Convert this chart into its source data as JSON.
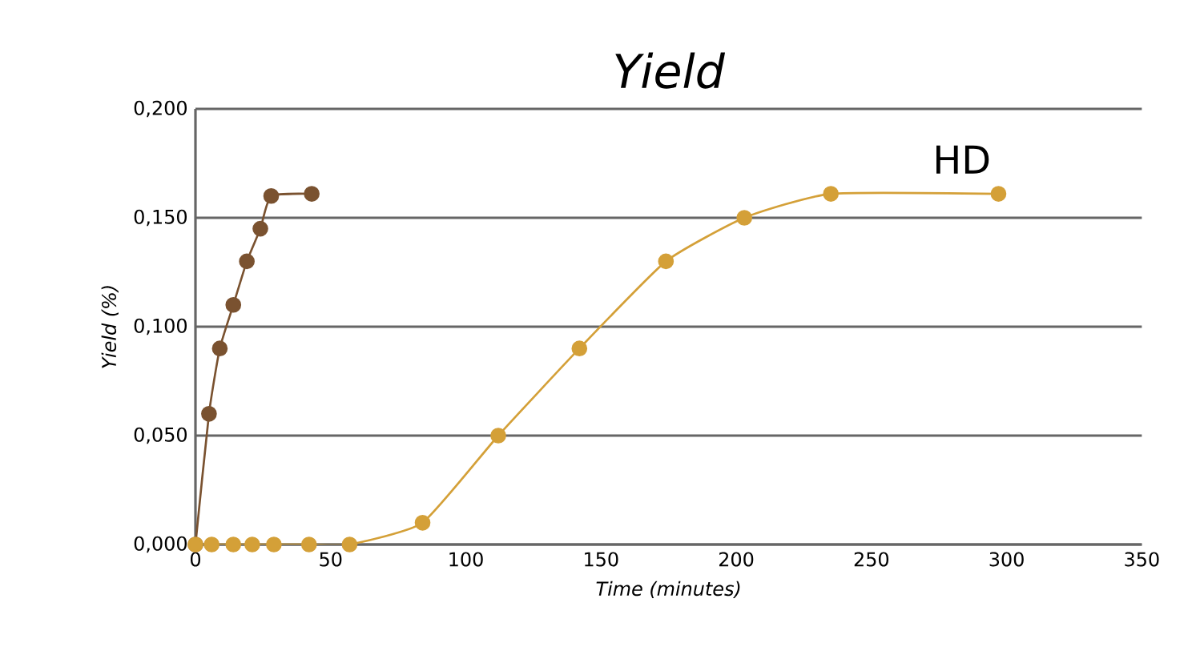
{
  "chart_data": {
    "type": "line",
    "title": "Yield",
    "xlabel": "Time (minutes)",
    "ylabel": "Yield (%)",
    "xlim": [
      0,
      350
    ],
    "xticks": [
      0,
      50,
      100,
      150,
      200,
      250,
      300,
      350
    ],
    "ylim": [
      0,
      0.2
    ],
    "yticks": [
      {
        "value": 0,
        "label": "0,000"
      },
      {
        "value": 0.05,
        "label": "0,050"
      },
      {
        "value": 0.1,
        "label": "0,100"
      },
      {
        "value": 0.15,
        "label": "0,150"
      },
      {
        "value": 0.2,
        "label": "0,200"
      }
    ],
    "grid": "y",
    "marker": "circle",
    "legend": false,
    "series": [
      {
        "color": "#7a5230",
        "x": [
          0,
          5,
          9,
          14,
          19,
          24,
          28,
          43
        ],
        "values": [
          0,
          0.06,
          0.09,
          0.11,
          0.13,
          0.145,
          0.16,
          0.161
        ]
      },
      {
        "name": "HD",
        "color": "#d4a038",
        "x": [
          0,
          6,
          14,
          21,
          29,
          42,
          57,
          84,
          112,
          142,
          174,
          203,
          235,
          297
        ],
        "values": [
          0,
          0,
          0,
          0,
          0,
          0,
          0,
          0.01,
          0.05,
          0.09,
          0.13,
          0.15,
          0.161,
          0.161
        ]
      }
    ]
  }
}
